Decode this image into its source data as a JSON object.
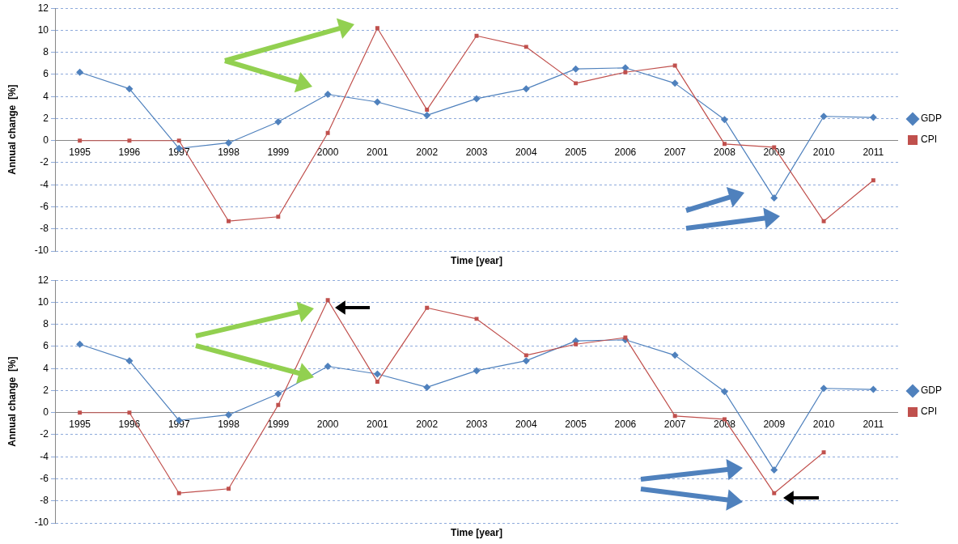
{
  "chart_data": [
    {
      "type": "line",
      "xlabel": "Time [year]",
      "ylabel": "Annual change  [%]",
      "categories": [
        "1995",
        "1996",
        "1997",
        "1998",
        "1999",
        "2000",
        "2001",
        "2002",
        "2003",
        "2004",
        "2005",
        "2006",
        "2007",
        "2008",
        "2009",
        "2010",
        "2011"
      ],
      "series": [
        {
          "name": "GDP",
          "color": "#4f81bd",
          "marker": "diamond",
          "values": [
            6.2,
            4.7,
            -0.7,
            -0.2,
            1.7,
            4.2,
            3.5,
            2.3,
            3.8,
            4.7,
            6.5,
            6.6,
            5.2,
            1.9,
            -5.2,
            2.2,
            2.1
          ]
        },
        {
          "name": "CPI",
          "color": "#c0504d",
          "marker": "square",
          "values": [
            0,
            0,
            0,
            -7.3,
            -6.9,
            0.7,
            10.2,
            2.8,
            9.5,
            8.5,
            5.2,
            6.2,
            6.8,
            -0.3,
            -0.6,
            -7.3,
            -3.6
          ]
        }
      ],
      "ylim": [
        -10,
        12
      ],
      "yticks": [
        -10,
        -8,
        -6,
        -4,
        -2,
        0,
        2,
        4,
        6,
        8,
        10,
        12
      ],
      "grid": "y",
      "legend": "right"
    },
    {
      "type": "line",
      "xlabel": "Time [year]",
      "ylabel": "Annual change  [%]",
      "categories": [
        "1995",
        "1996",
        "1997",
        "1998",
        "1999",
        "2000",
        "2001",
        "2002",
        "2003",
        "2004",
        "2005",
        "2006",
        "2007",
        "2008",
        "2009",
        "2010",
        "2011"
      ],
      "series": [
        {
          "name": "GDP",
          "color": "#4f81bd",
          "marker": "diamond",
          "values": [
            6.2,
            4.7,
            -0.7,
            -0.2,
            1.7,
            4.2,
            3.5,
            2.3,
            3.8,
            4.7,
            6.5,
            6.6,
            5.2,
            1.9,
            -5.2,
            2.2,
            2.1
          ]
        },
        {
          "name": "CPI",
          "color": "#c0504d",
          "marker": "square",
          "values": [
            0,
            0,
            -7.3,
            -6.9,
            0.7,
            10.2,
            2.8,
            9.5,
            8.5,
            5.2,
            6.2,
            6.8,
            -0.3,
            -0.6,
            -7.3,
            -3.6,
            null
          ]
        }
      ],
      "ylim": [
        -10,
        12
      ],
      "yticks": [
        -10,
        -8,
        -6,
        -4,
        -2,
        0,
        2,
        4,
        6,
        8,
        10,
        12
      ],
      "grid": "y",
      "legend": "right"
    }
  ]
}
